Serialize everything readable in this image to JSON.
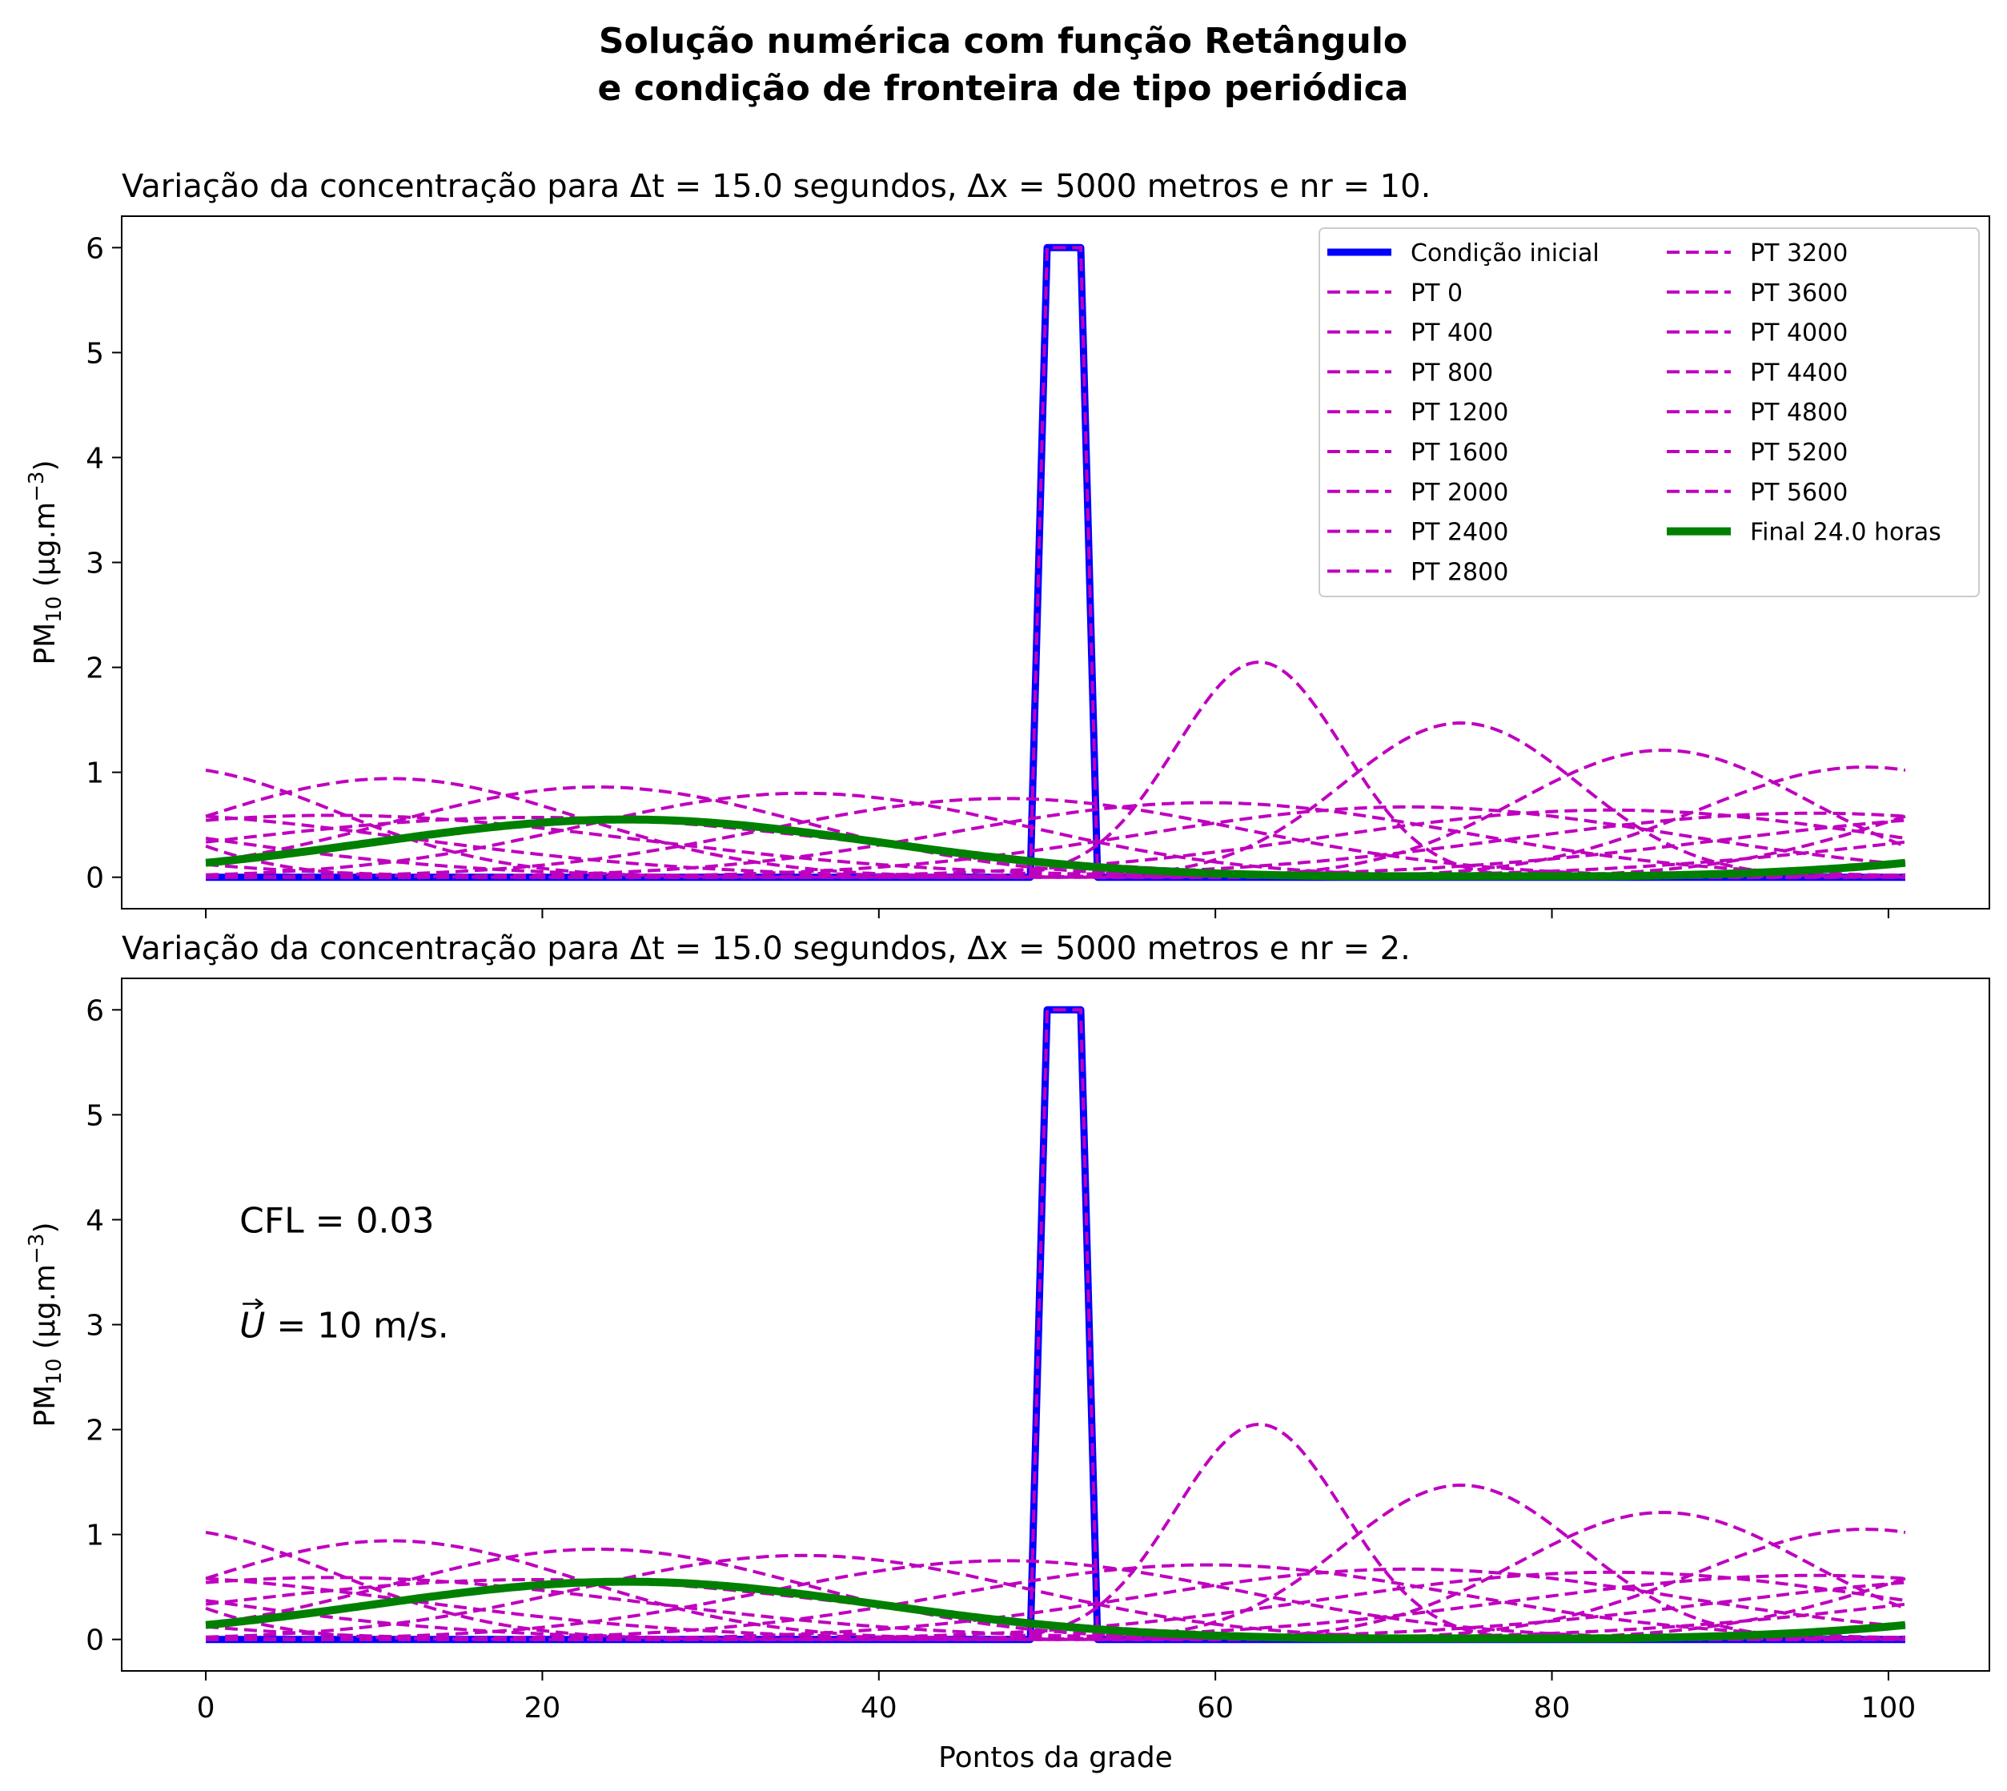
{
  "figure": {
    "suptitle_line1": "Solução numérica com função Retângulo",
    "suptitle_line2": "e condição de fronteira de tipo periódica"
  },
  "colors": {
    "initial": "#0000ff",
    "pt": "#bf00bf",
    "final": "#008000"
  },
  "legend": {
    "initial": "Condição inicial",
    "pt": [
      "PT 0",
      "PT 400",
      "PT 800",
      "PT 1200",
      "PT 1600",
      "PT 2000",
      "PT 2400",
      "PT 2800",
      "PT 3200",
      "PT 3600",
      "PT 4000",
      "PT 4400",
      "PT 4800",
      "PT 5200",
      "PT 5600"
    ],
    "final": "Final 24.0 horas",
    "placement": "upper right",
    "columns": 2
  },
  "chart_data": [
    {
      "type": "line",
      "title": "Variação da concentração para Δt = 15.0 segundos, Δx = 5000 metros e nr = 10.",
      "xlabel": "",
      "ylabel_main": "PM",
      "ylabel_sub": "10",
      "ylabel_unit": " (μg.m",
      "ylabel_sup": "−3",
      "ylabel_close": ")",
      "xlim": [
        -5,
        106
      ],
      "ylim": [
        -0.3,
        6.3
      ],
      "xticks": [
        0,
        20,
        40,
        60,
        80,
        100
      ],
      "xticklabels_visible": false,
      "yticks": [
        0,
        1,
        2,
        3,
        4,
        5,
        6
      ],
      "annotations": [],
      "initial_condition": {
        "baseline": 0,
        "peak": 6,
        "rise": [
          49,
          50
        ],
        "fall": [
          52,
          53
        ],
        "x_range": [
          0,
          101
        ]
      },
      "pt_peaks": [
        {
          "label": "PT 0",
          "x_center": 51,
          "amplitude": 6,
          "shape": "rect"
        },
        {
          "label": "PT 400",
          "x_center": 62.6,
          "amplitude": 2.05
        },
        {
          "label": "PT 800",
          "x_center": 74.6,
          "amplitude": 1.47
        },
        {
          "label": "PT 1200",
          "x_center": 86.6,
          "amplitude": 1.21
        },
        {
          "label": "PT 1600",
          "x_center": 98.6,
          "amplitude": 1.05
        },
        {
          "label": "PT 2000",
          "x_center": 11,
          "amplitude": 0.94
        },
        {
          "label": "PT 2400",
          "x_center": 23.3,
          "amplitude": 0.86
        },
        {
          "label": "PT 2800",
          "x_center": 35.5,
          "amplitude": 0.8
        },
        {
          "label": "PT 3200",
          "x_center": 47.5,
          "amplitude": 0.75
        },
        {
          "label": "PT 3600",
          "x_center": 59.5,
          "amplitude": 0.71
        },
        {
          "label": "PT 4000",
          "x_center": 71.5,
          "amplitude": 0.67
        },
        {
          "label": "PT 4400",
          "x_center": 83.5,
          "amplitude": 0.64
        },
        {
          "label": "PT 4800",
          "x_center": 95.5,
          "amplitude": 0.61
        },
        {
          "label": "PT 5200",
          "x_center": 7.5,
          "amplitude": 0.59
        },
        {
          "label": "PT 5600",
          "x_center": 19.5,
          "amplitude": 0.57
        }
      ],
      "final": {
        "x_center": 25,
        "amplitude": 0.55,
        "min_value": 0.01
      }
    },
    {
      "type": "line",
      "title": "Variação da concentração para Δt = 15.0 segundos, Δx = 5000 metros e nr = 2.",
      "xlabel": "Pontos da grade",
      "ylabel_main": "PM",
      "ylabel_sub": "10",
      "ylabel_unit": " (μg.m",
      "ylabel_sup": "−3",
      "ylabel_close": ")",
      "xlim": [
        -5,
        106
      ],
      "ylim": [
        -0.3,
        6.3
      ],
      "xticks": [
        0,
        20,
        40,
        60,
        80,
        100
      ],
      "xticklabels_visible": true,
      "yticks": [
        0,
        1,
        2,
        3,
        4,
        5,
        6
      ],
      "annotations": [
        {
          "text": "CFL = 0.03",
          "x": 2,
          "y": 4.0
        },
        {
          "text": "U",
          "suffix": " = 10 m/s.",
          "vector": true,
          "x": 2,
          "y": 3.0
        }
      ],
      "initial_condition": {
        "baseline": 0,
        "peak": 6,
        "rise": [
          49,
          50
        ],
        "fall": [
          52,
          53
        ],
        "x_range": [
          0,
          101
        ]
      },
      "pt_peaks": [
        {
          "label": "PT 0",
          "x_center": 51,
          "amplitude": 6,
          "shape": "rect"
        },
        {
          "label": "PT 400",
          "x_center": 62.6,
          "amplitude": 2.05
        },
        {
          "label": "PT 800",
          "x_center": 74.6,
          "amplitude": 1.47
        },
        {
          "label": "PT 1200",
          "x_center": 86.6,
          "amplitude": 1.21
        },
        {
          "label": "PT 1600",
          "x_center": 98.6,
          "amplitude": 1.05
        },
        {
          "label": "PT 2000",
          "x_center": 11,
          "amplitude": 0.94
        },
        {
          "label": "PT 2400",
          "x_center": 23.3,
          "amplitude": 0.86
        },
        {
          "label": "PT 2800",
          "x_center": 35.5,
          "amplitude": 0.8
        },
        {
          "label": "PT 3200",
          "x_center": 47.5,
          "amplitude": 0.75
        },
        {
          "label": "PT 3600",
          "x_center": 59.5,
          "amplitude": 0.71
        },
        {
          "label": "PT 4000",
          "x_center": 71.5,
          "amplitude": 0.67
        },
        {
          "label": "PT 4400",
          "x_center": 83.5,
          "amplitude": 0.64
        },
        {
          "label": "PT 4800",
          "x_center": 95.5,
          "amplitude": 0.61
        },
        {
          "label": "PT 5200",
          "x_center": 7.5,
          "amplitude": 0.59
        },
        {
          "label": "PT 5600",
          "x_center": 19.5,
          "amplitude": 0.57
        }
      ],
      "final": {
        "x_center": 25,
        "amplitude": 0.55,
        "min_value": 0.01
      }
    }
  ]
}
